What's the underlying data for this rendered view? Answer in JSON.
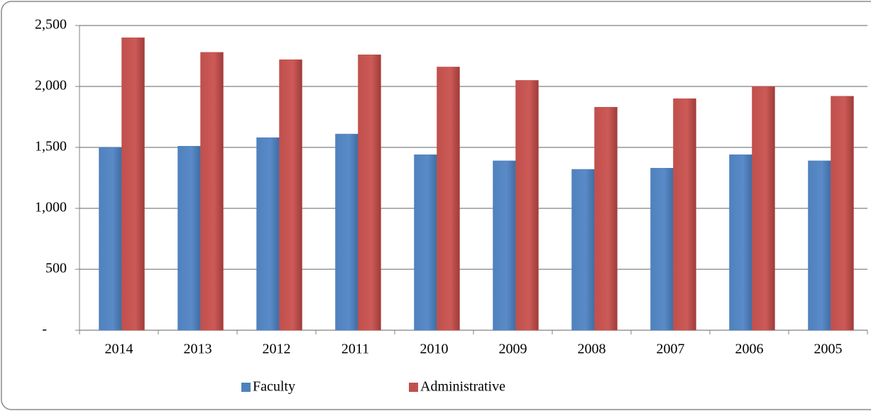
{
  "chart_data": {
    "type": "bar",
    "categories": [
      "2014",
      "2013",
      "2012",
      "2011",
      "2010",
      "2009",
      "2008",
      "2007",
      "2006",
      "2005"
    ],
    "series": [
      {
        "name": "Faculty",
        "color": "#4f81bd",
        "values": [
          1500,
          1510,
          1580,
          1610,
          1440,
          1390,
          1320,
          1330,
          1440,
          1390
        ]
      },
      {
        "name": "Administrative",
        "color": "#c0504d",
        "values": [
          2400,
          2280,
          2220,
          2260,
          2160,
          2050,
          1830,
          1900,
          2000,
          1920
        ]
      }
    ],
    "ylim": [
      0,
      2500
    ],
    "yticks": [
      {
        "value": 0,
        "label": "-"
      },
      500,
      {
        "value": 1000,
        "label": "1,000"
      },
      {
        "value": 1500,
        "label": "1,500"
      },
      {
        "value": 2000,
        "label": "2,000"
      },
      {
        "value": 2500,
        "label": "2,500"
      }
    ],
    "grid": true,
    "legend": "bottom"
  }
}
